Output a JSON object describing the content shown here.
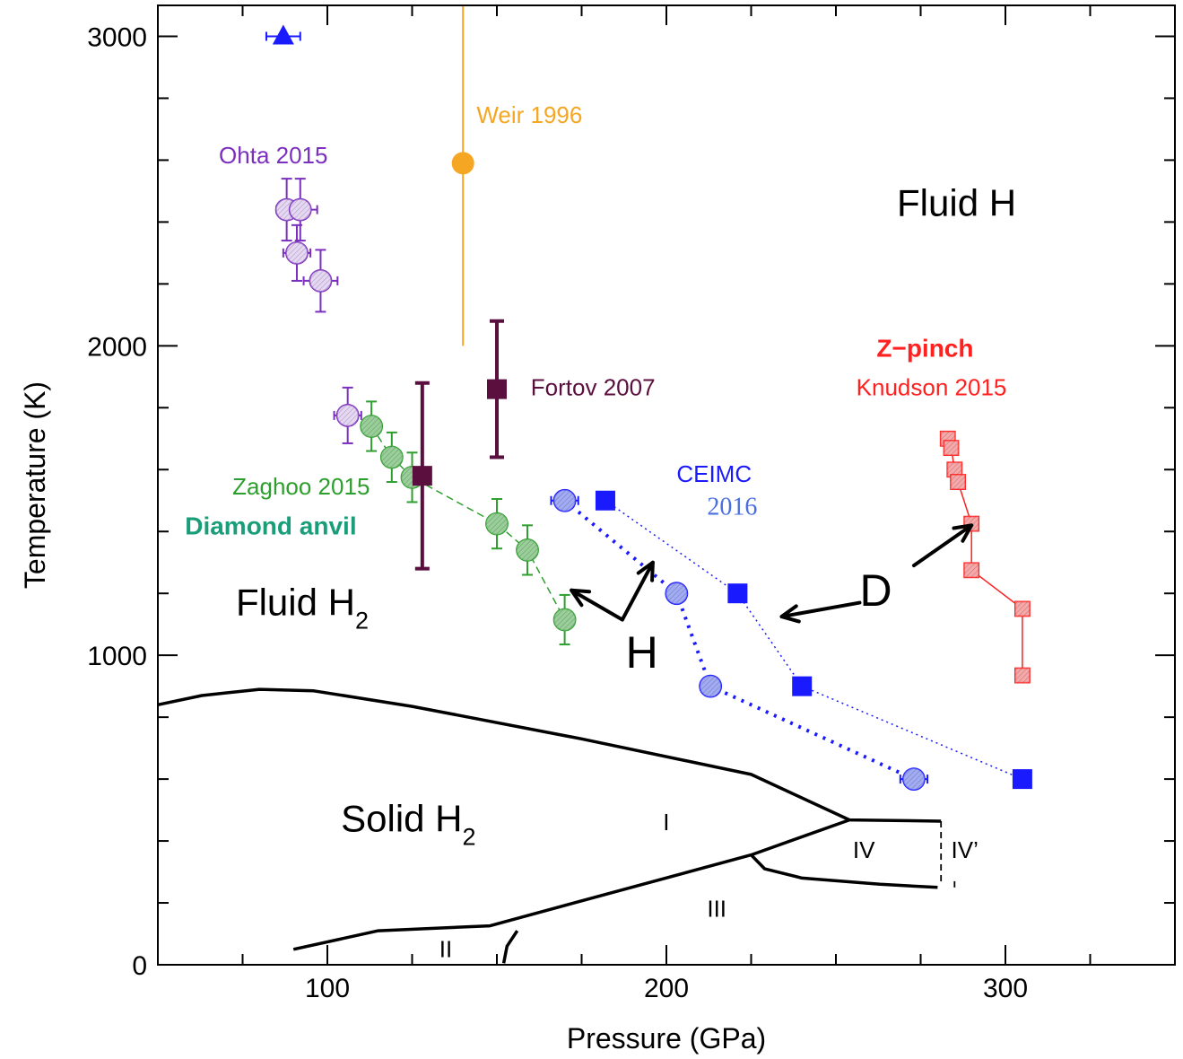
{
  "chart_data": {
    "type": "scatter",
    "xlabel": "Pressure (GPa)",
    "ylabel": "Temperature (K)",
    "xlim": [
      50,
      350
    ],
    "ylim": [
      0,
      3100
    ],
    "x_ticks": [
      100,
      200,
      300
    ],
    "y_ticks": [
      0,
      1000,
      2000,
      3000
    ],
    "grid": false,
    "series": [
      {
        "name": "Ohta 2015",
        "color": "#7b2fbe",
        "marker": "hatched-circle",
        "points": [
          {
            "x": 88,
            "y": 2440,
            "xerr": 3,
            "yerr": 100
          },
          {
            "x": 92,
            "y": 2440,
            "xerr": 5,
            "yerr": 100
          },
          {
            "x": 91,
            "y": 2300,
            "xerr": 4,
            "yerr": 90
          },
          {
            "x": 98,
            "y": 2210,
            "xerr": 5,
            "yerr": 100
          },
          {
            "x": 106,
            "y": 1775,
            "xerr": 4,
            "yerr": 90
          }
        ]
      },
      {
        "name": "Zaghoo 2015",
        "color": "#2e9e2e",
        "marker": "hatched-circle",
        "line": "dashed",
        "points": [
          {
            "x": 113,
            "y": 1740,
            "yerr": 80
          },
          {
            "x": 119,
            "y": 1640,
            "yerr": 80
          },
          {
            "x": 125,
            "y": 1575,
            "yerr": 80
          },
          {
            "x": 150,
            "y": 1425,
            "yerr": 80
          },
          {
            "x": 159,
            "y": 1340,
            "yerr": 80
          },
          {
            "x": 170,
            "y": 1115,
            "yerr": 80
          }
        ]
      },
      {
        "name": "Weir 1996",
        "color": "#f5a623",
        "marker": "circle",
        "points": [
          {
            "x": 140,
            "y": 2590,
            "yerr_low": 590,
            "yerr_high": 510
          }
        ]
      },
      {
        "name": "Fortov 2007",
        "color": "#5a0f3f",
        "marker": "square",
        "points": [
          {
            "x": 150,
            "y": 1860,
            "yerr": 220
          },
          {
            "x": 128,
            "y": 1580,
            "yerr": 300
          }
        ]
      },
      {
        "name": "CEIMC H",
        "color": "#1a1aff",
        "marker": "hatched-circle",
        "line": "dotted-thick",
        "points": [
          {
            "x": 170,
            "y": 1500,
            "xerr": 4
          },
          {
            "x": 203,
            "y": 1200
          },
          {
            "x": 213,
            "y": 900
          },
          {
            "x": 273,
            "y": 600,
            "xerr": 4
          }
        ]
      },
      {
        "name": "CEIMC D",
        "color": "#1a1aff",
        "marker": "square",
        "line": "dotted-thin",
        "points": [
          {
            "x": 182,
            "y": 1500
          },
          {
            "x": 221,
            "y": 1200
          },
          {
            "x": 240,
            "y": 900
          },
          {
            "x": 305,
            "y": 600
          }
        ]
      },
      {
        "name": "Knudson 2015",
        "color": "#ff2020",
        "marker": "hatched-square",
        "line": "solid",
        "points": [
          {
            "x": 283,
            "y": 1700
          },
          {
            "x": 284,
            "y": 1670
          },
          {
            "x": 285,
            "y": 1600
          },
          {
            "x": 286,
            "y": 1560
          },
          {
            "x": 290,
            "y": 1425
          },
          {
            "x": 290,
            "y": 1275
          },
          {
            "x": 305,
            "y": 1150
          },
          {
            "x": 305,
            "y": 935
          }
        ]
      },
      {
        "name": "triangle point",
        "color": "#1a1aff",
        "marker": "triangle",
        "points": [
          {
            "x": 87,
            "y": 3000,
            "xerr": 5
          }
        ]
      }
    ],
    "phase_boundaries": [
      {
        "style": "solid",
        "points": [
          [
            50,
            840
          ],
          [
            63,
            870
          ],
          [
            80,
            890
          ],
          [
            96,
            885
          ],
          [
            125,
            835
          ],
          [
            175,
            730
          ],
          [
            225,
            615
          ],
          [
            254,
            468
          ],
          [
            281,
            464
          ]
        ]
      },
      {
        "style": "solid",
        "points": [
          [
            90,
            50
          ],
          [
            115,
            110
          ],
          [
            148,
            126
          ],
          [
            156,
            150
          ],
          [
            225,
            355
          ],
          [
            254,
            468
          ]
        ]
      },
      {
        "style": "solid",
        "points": [
          [
            152,
            5
          ],
          [
            153,
            60
          ],
          [
            156,
            110
          ]
        ]
      },
      {
        "style": "solid",
        "points": [
          [
            225,
            355
          ],
          [
            229,
            310
          ],
          [
            240,
            280
          ],
          [
            263,
            260
          ],
          [
            280,
            250
          ]
        ]
      },
      {
        "style": "dashed",
        "points": [
          [
            281,
            464
          ],
          [
            281,
            260
          ]
        ]
      },
      {
        "style": "dashed",
        "points": [
          [
            285,
            270
          ],
          [
            285,
            250
          ]
        ]
      }
    ],
    "arrows": [
      {
        "from": [
          187,
          1115
        ],
        "to": [
          172,
          1210
        ]
      },
      {
        "from": [
          187,
          1115
        ],
        "to": [
          196,
          1300
        ]
      },
      {
        "from": [
          273,
          1290
        ],
        "to": [
          290,
          1420
        ]
      },
      {
        "from": [
          257,
          1170
        ],
        "to": [
          234,
          1125
        ]
      }
    ],
    "annotations": [
      {
        "text": "Ohta 2015",
        "x": 68,
        "y": 2590,
        "color": "#7b2fbe",
        "size": 26
      },
      {
        "text": "Weir 1996",
        "x": 144,
        "y": 2720,
        "color": "#f5a623",
        "size": 26
      },
      {
        "text": "Fortov 2007",
        "x": 160,
        "y": 1840,
        "color": "#5a0f3f",
        "size": 26
      },
      {
        "text": "Zaghoo 2015",
        "x": 72,
        "y": 1520,
        "color": "#2e9e2e",
        "size": 26
      },
      {
        "text": "Diamond anvil",
        "x": 58,
        "y": 1390,
        "color": "#1a9e7a",
        "size": 28,
        "bold": true
      },
      {
        "text": "CEIMC",
        "x": 203,
        "y": 1560,
        "color": "#1a1aff",
        "size": 26
      },
      {
        "text": "2016",
        "x": 212,
        "y": 1455,
        "color": "#4a6ee0",
        "size": 28,
        "serif": true
      },
      {
        "text": "Z−pinch",
        "x": 262,
        "y": 1965,
        "color": "#ff2020",
        "size": 28,
        "bold": true
      },
      {
        "text": "Knudson 2015",
        "x": 256,
        "y": 1840,
        "color": "#ff2020",
        "size": 26
      },
      {
        "text": "Fluid H",
        "x": 268,
        "y": 2420,
        "color": "#000000",
        "size": 42
      },
      {
        "text": "Fluid H",
        "sub": "2",
        "x": 73,
        "y": 1130,
        "color": "#000000",
        "size": 42
      },
      {
        "text": "Solid H",
        "sub": "2",
        "x": 104,
        "y": 430,
        "color": "#000000",
        "size": 42
      },
      {
        "text": "H",
        "x": 188,
        "y": 960,
        "color": "#000000",
        "size": 50
      },
      {
        "text": "D",
        "x": 257,
        "y": 1160,
        "color": "#000000",
        "size": 50
      },
      {
        "text": "I",
        "x": 199,
        "y": 435,
        "color": "#000000",
        "size": 26
      },
      {
        "text": "IV",
        "x": 255,
        "y": 345,
        "color": "#000000",
        "size": 26
      },
      {
        "text": "IV’",
        "x": 284,
        "y": 345,
        "color": "#000000",
        "size": 26
      },
      {
        "text": "III",
        "x": 212,
        "y": 155,
        "color": "#000000",
        "size": 26
      },
      {
        "text": "II",
        "x": 133,
        "y": 25,
        "color": "#000000",
        "size": 26
      }
    ]
  }
}
